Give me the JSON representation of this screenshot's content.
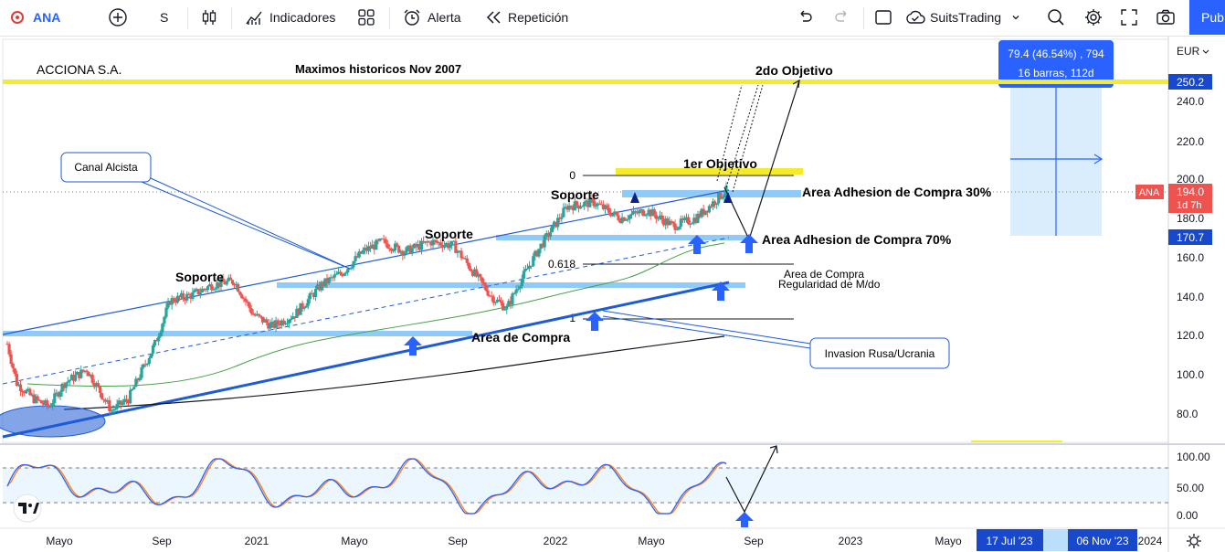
{
  "toolbar": {
    "symbol": "ANA",
    "interval": "S",
    "indicators": "Indicadores",
    "alert": "Alerta",
    "replay": "Repetición",
    "layout_name": "SuitsTrading",
    "publish": "Pub"
  },
  "chart": {
    "company": "ACCIONA S.A.",
    "currency": "EUR",
    "ylabels": [
      "250.2",
      "240.0",
      "220.0",
      "200.0",
      "180.0",
      "160.0",
      "140.0",
      "120.0",
      "100.0",
      "80.0"
    ],
    "osc_labels": [
      "100.00",
      "50.00",
      "0.00"
    ],
    "xlabels": [
      "Mayo",
      "Sep",
      "2021",
      "Mayo",
      "Sep",
      "2022",
      "Mayo",
      "Sep",
      "2023",
      "Mayo",
      "2024"
    ],
    "x_range_start": "17 Jul '23",
    "x_range_end": "06 Nov '23",
    "price_tag_symbol": "ANA",
    "price_tag_value": "194.0",
    "price_tag_countdown": "1d 7h",
    "tag_170": "170.7",
    "tag_250": "250.2",
    "measure_line1": "79.4 (46.54%) , 794",
    "measure_line2": "16 barras, 112d",
    "notes": {
      "maximos": "Maximos historicos Nov 2007",
      "segundo_objetivo": "2do Objetivo",
      "primer_objetivo": "1er Objetivo",
      "canal": "Canal Alcista",
      "soporte1": "Soporte",
      "soporte2": "Soporte",
      "soporte3": "Soporte",
      "adhesion30": "Area Adhesion de Compra 30%",
      "adhesion70": "Area Adhesion de Compra 70%",
      "area_compra_1": "Area de Compra",
      "area_compra_2": "Regularidad de M/do",
      "area_compra_low": "Area de Compra",
      "invasion": "Invasion Rusa/Ucrania",
      "fib0": "0",
      "fib618": "0.618",
      "fib1": "1"
    }
  },
  "colors": {
    "accent": "#2962ff",
    "up": "#26a69a",
    "down": "#ef5350",
    "yellow_line": "#f5eb2d",
    "support_band": "#90caf9",
    "channel": "#1e5bd6",
    "k_line": "#2962ff",
    "d_line": "#ff7f0e"
  }
}
